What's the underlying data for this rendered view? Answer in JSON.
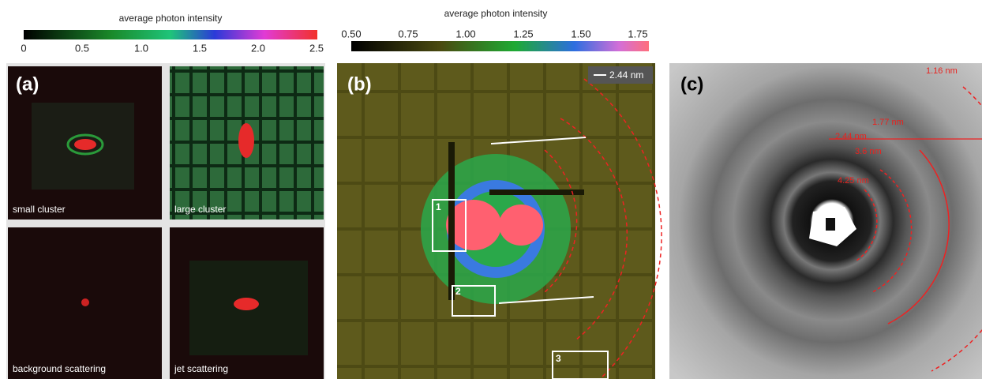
{
  "colorbar_a": {
    "title": "average photon intensity",
    "ticks": [
      "0",
      "0.5",
      "1.0",
      "1.5",
      "2.0",
      "2.5"
    ]
  },
  "colorbar_b": {
    "title": "average photon intensity",
    "ticks": [
      "0.50",
      "0.75",
      "1.00",
      "1.25",
      "1.50",
      "1.75"
    ]
  },
  "panel_a": {
    "label": "(a)",
    "subpanels": [
      "small cluster",
      "large cluster",
      "background scattering",
      "jet scattering"
    ]
  },
  "panel_b": {
    "label": "(b)",
    "scale": "2.44 nm",
    "boxes": [
      "1",
      "2",
      "3"
    ]
  },
  "panel_c": {
    "label": "(c)",
    "rings": [
      "1.16 nm",
      "1.77 nm",
      "2.44 nm",
      "3.6 nm",
      "4.25 nm"
    ]
  }
}
